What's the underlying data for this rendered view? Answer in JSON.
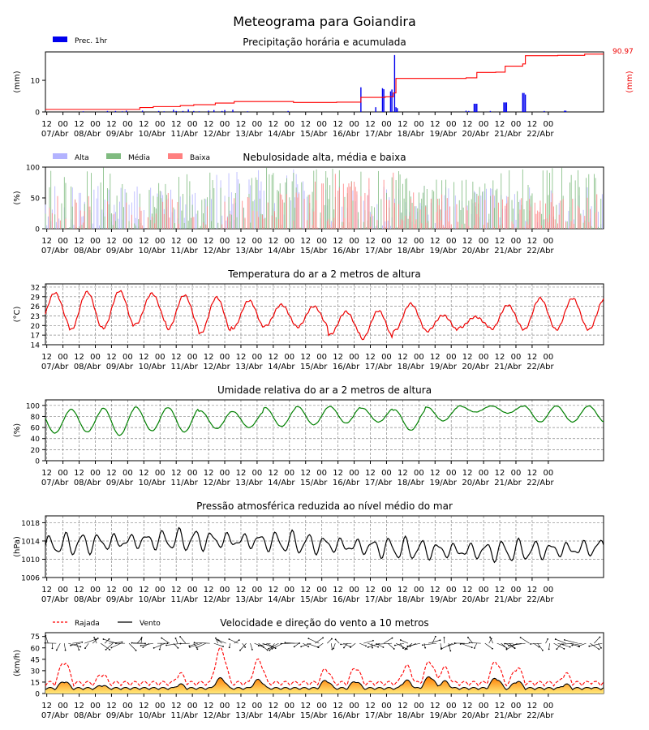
{
  "title": "Meteograma para Goiandira",
  "x_ticks": {
    "hours": [
      "12",
      "00",
      "12",
      "00",
      "12",
      "00",
      "12",
      "00",
      "12",
      "00",
      "12",
      "00",
      "12",
      "00",
      "12",
      "00",
      "12",
      "00",
      "12",
      "00",
      "12",
      "00",
      "12",
      "00",
      "12",
      "00",
      "12",
      "00",
      "12",
      "00",
      "12",
      "00"
    ],
    "dates": [
      "07/Abr",
      "08/Abr",
      "09/Abr",
      "10/Abr",
      "11/Abr",
      "12/Abr",
      "13/Abr",
      "14/Abr",
      "15/Abr",
      "16/Abr",
      "17/Abr",
      "18/Abr",
      "19/Abr",
      "20/Abr",
      "21/Abr",
      "22/Abr"
    ]
  },
  "chart_data": [
    {
      "id": "precip",
      "type": "bar",
      "title": "Precipitação horária e acumulada",
      "ylabel": "(mm)",
      "ylabel_right": "(mm)",
      "ylim": [
        0,
        19
      ],
      "yticks": [
        "0",
        "10"
      ],
      "right_label": "90.97",
      "legend": [
        "Prec. 1hr"
      ],
      "bar_color": "#0000ee",
      "line_color": "#ff0000",
      "bars_hour_value": [
        [
          28,
          0.2
        ],
        [
          46,
          0.3
        ],
        [
          52,
          0.3
        ],
        [
          57,
          0.2
        ],
        [
          60,
          0.4
        ],
        [
          72,
          0.4
        ],
        [
          84,
          0.3
        ],
        [
          88,
          0.2
        ],
        [
          95,
          0.7
        ],
        [
          97,
          0.3
        ],
        [
          102,
          0.3
        ],
        [
          106,
          0.8
        ],
        [
          110,
          0.3
        ],
        [
          114,
          0.2
        ],
        [
          121,
          0.4
        ],
        [
          125,
          0.6
        ],
        [
          131,
          0.3
        ],
        [
          133,
          0.6
        ],
        [
          139,
          0.7
        ],
        [
          150,
          0.2
        ],
        [
          180,
          0.3
        ],
        [
          234,
          7.8
        ],
        [
          245,
          1.5
        ],
        [
          250,
          7.5
        ],
        [
          251,
          7.2
        ],
        [
          256,
          6.5
        ],
        [
          257,
          7.1
        ],
        [
          259,
          18
        ],
        [
          260,
          1.5
        ],
        [
          261,
          1.2
        ],
        [
          312,
          0.4
        ],
        [
          314,
          0.3
        ],
        [
          318,
          2.6
        ],
        [
          319,
          2.6
        ],
        [
          320,
          2.6
        ],
        [
          330,
          0.3
        ],
        [
          340,
          3.0
        ],
        [
          341,
          3.0
        ],
        [
          342,
          3.0
        ],
        [
          354,
          6.0
        ],
        [
          355,
          6.0
        ],
        [
          356,
          5.5
        ],
        [
          370,
          0.3
        ],
        [
          385,
          0.4
        ],
        [
          386,
          0.4
        ]
      ],
      "cumulative_hour_value": [
        [
          0,
          0.8
        ],
        [
          40,
          0.8
        ],
        [
          70,
          1.4
        ],
        [
          80,
          1.7
        ],
        [
          100,
          2.0
        ],
        [
          110,
          2.3
        ],
        [
          126,
          2.8
        ],
        [
          140,
          3.3
        ],
        [
          160,
          3.3
        ],
        [
          184,
          3.0
        ],
        [
          216,
          3.1
        ],
        [
          234,
          4.6
        ],
        [
          252,
          4.8
        ],
        [
          258,
          6.0
        ],
        [
          260,
          10.6
        ],
        [
          280,
          10.6
        ],
        [
          300,
          10.6
        ],
        [
          312,
          10.8
        ],
        [
          320,
          12.5
        ],
        [
          334,
          12.6
        ],
        [
          341,
          14.5
        ],
        [
          354,
          15.2
        ],
        [
          356,
          17.8
        ],
        [
          380,
          17.9
        ],
        [
          400,
          18.3
        ],
        [
          412,
          18.3
        ]
      ]
    },
    {
      "id": "cloud",
      "type": "bar",
      "title": "Nebulosidade alta, média e baixa",
      "ylabel": "(%)",
      "ylim": [
        0,
        100
      ],
      "yticks": [
        "0",
        "50",
        "100"
      ],
      "legend": [
        "Alta",
        "Média",
        "Baixa"
      ],
      "colors": [
        "#b3b3ff",
        "#80bb80",
        "#ff8080"
      ],
      "seed": 7
    },
    {
      "id": "temp",
      "type": "line",
      "title": "Temperatura do ar a 2 metros de altura",
      "ylabel": "(°C)",
      "ylim": [
        14,
        33
      ],
      "yticks": [
        "14",
        "17",
        "20",
        "23",
        "26",
        "29",
        "32"
      ],
      "line_color": "#ee0000",
      "daily_max": [
        30.2,
        30.5,
        30.8,
        30.0,
        29.5,
        28.8,
        27.8,
        26.5,
        26.0,
        24.3,
        24.6,
        26.8,
        23.2,
        22.7,
        26.4,
        28.5
      ],
      "daily_min": [
        19.7,
        18.7,
        19.2,
        20.4,
        18.9,
        17.5,
        19.1,
        19.8,
        19.5,
        17.1,
        15.8,
        18.4,
        18.2,
        19.3,
        18.9,
        18.7
      ]
    },
    {
      "id": "humidity",
      "type": "line",
      "title": "Umidade relativa do ar a 2 metros de altura",
      "ylabel": "(%)",
      "ylim": [
        0,
        110
      ],
      "yticks": [
        "0",
        "20",
        "40",
        "60",
        "80",
        "100"
      ],
      "line_color": "#008000",
      "daily_max": [
        92,
        93,
        95,
        97,
        96,
        90,
        89,
        96,
        98,
        98,
        95,
        92,
        97,
        99,
        99,
        99
      ],
      "daily_min": [
        50,
        52,
        46,
        54,
        52,
        58,
        60,
        62,
        65,
        68,
        70,
        55,
        72,
        88,
        86,
        70
      ]
    },
    {
      "id": "pressure",
      "type": "line",
      "title": "Pressão atmosférica reduzida ao nível médio do mar",
      "ylabel": "(hPa)",
      "ylim": [
        1006,
        1019.5
      ],
      "yticks": [
        "1006",
        "1010",
        "1014",
        "1018"
      ],
      "line_color": "#000000"
    },
    {
      "id": "wind",
      "type": "line",
      "title": "Velocidade e direção do vento a 10 metros",
      "ylabel": "(km/h)",
      "ylim": [
        0,
        80
      ],
      "yticks": [
        "0",
        "15",
        "30",
        "45",
        "60",
        "75"
      ],
      "legend": [
        "Rajada",
        "Vento"
      ],
      "gust_color": "#ff0000",
      "wind_color": "#000000",
      "gust_peaks": [
        [
          14,
          38
        ],
        [
          42,
          22
        ],
        [
          100,
          22
        ],
        [
          130,
          55
        ],
        [
          158,
          40
        ],
        [
          208,
          28
        ],
        [
          230,
          30
        ],
        [
          268,
          32
        ],
        [
          285,
          38
        ],
        [
          296,
          30
        ],
        [
          334,
          38
        ],
        [
          350,
          30
        ],
        [
          386,
          22
        ],
        [
          405,
          12
        ]
      ],
      "wind_peaks": [
        [
          14,
          14
        ],
        [
          42,
          9
        ],
        [
          100,
          10
        ],
        [
          130,
          18
        ],
        [
          158,
          16
        ],
        [
          208,
          15
        ],
        [
          230,
          14
        ],
        [
          268,
          15
        ],
        [
          285,
          20
        ],
        [
          296,
          14
        ],
        [
          334,
          18
        ],
        [
          350,
          14
        ],
        [
          386,
          10
        ],
        [
          405,
          6
        ]
      ]
    }
  ]
}
